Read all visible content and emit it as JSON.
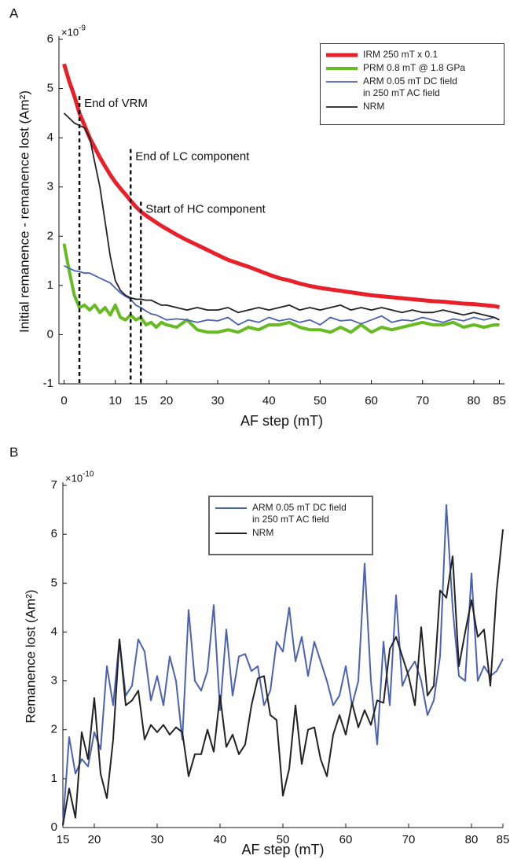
{
  "chart_data": [
    {
      "type": "line",
      "panel_label": "A",
      "x_label": "AF step (mT)",
      "y_label": "Initial remanence - remanence lost (Am²)",
      "y_multiplier": {
        "base": "×10",
        "exponent": "-9"
      },
      "xlim": [
        -1,
        86
      ],
      "xticks": [
        0,
        10,
        15,
        20,
        30,
        40,
        50,
        60,
        70,
        80,
        85
      ],
      "ylim": [
        -1,
        6
      ],
      "yticks": [
        -1,
        0,
        1,
        2,
        3,
        4,
        5,
        6
      ],
      "legend": "upper right",
      "x": [
        0,
        1,
        2,
        3,
        4,
        5,
        6,
        7,
        8,
        9,
        10,
        11,
        12,
        13,
        14,
        15,
        16,
        17,
        18,
        19,
        20,
        22,
        24,
        26,
        28,
        30,
        32,
        34,
        36,
        38,
        40,
        42,
        44,
        46,
        48,
        50,
        52,
        54,
        56,
        58,
        60,
        62,
        64,
        66,
        68,
        70,
        72,
        74,
        76,
        78,
        80,
        82,
        84,
        85
      ],
      "series": [
        {
          "name": "IRM 250 mT x 0.1",
          "color": "#e8202a",
          "line_width": 5,
          "values": [
            5.5,
            5.15,
            4.85,
            4.5,
            4.25,
            4.0,
            3.8,
            3.6,
            3.42,
            3.25,
            3.1,
            2.97,
            2.85,
            2.72,
            2.6,
            2.5,
            2.42,
            2.35,
            2.28,
            2.21,
            2.15,
            2.03,
            1.92,
            1.82,
            1.72,
            1.62,
            1.52,
            1.45,
            1.38,
            1.3,
            1.22,
            1.15,
            1.1,
            1.04,
            0.99,
            0.95,
            0.92,
            0.89,
            0.86,
            0.83,
            0.8,
            0.78,
            0.76,
            0.74,
            0.72,
            0.7,
            0.68,
            0.67,
            0.65,
            0.63,
            0.62,
            0.6,
            0.58,
            0.56
          ]
        },
        {
          "name": "PRM 0.8 mT @ 1.8 GPa",
          "color": "#66bb22",
          "line_width": 4,
          "values": [
            1.85,
            1.3,
            0.8,
            0.55,
            0.6,
            0.5,
            0.6,
            0.45,
            0.55,
            0.4,
            0.6,
            0.35,
            0.3,
            0.4,
            0.3,
            0.35,
            0.2,
            0.25,
            0.15,
            0.25,
            0.2,
            0.15,
            0.3,
            0.1,
            0.05,
            0.05,
            0.1,
            0.05,
            0.15,
            0.1,
            0.2,
            0.2,
            0.25,
            0.15,
            0.1,
            0.1,
            0.05,
            0.15,
            0.05,
            0.2,
            0.05,
            0.15,
            0.1,
            0.15,
            0.2,
            0.25,
            0.2,
            0.2,
            0.25,
            0.15,
            0.2,
            0.15,
            0.2,
            0.2
          ]
        },
        {
          "name": "ARM 0.05 mT DC field\nin 250 mT AC field",
          "color": "#4a62b0",
          "line_width": 1.8,
          "values": [
            1.4,
            1.35,
            1.3,
            1.28,
            1.25,
            1.25,
            1.2,
            1.15,
            1.1,
            1.05,
            0.95,
            0.85,
            0.78,
            0.72,
            0.6,
            0.55,
            0.48,
            0.42,
            0.4,
            0.35,
            0.3,
            0.32,
            0.3,
            0.25,
            0.3,
            0.28,
            0.35,
            0.2,
            0.3,
            0.25,
            0.35,
            0.28,
            0.32,
            0.25,
            0.3,
            0.2,
            0.35,
            0.28,
            0.3,
            0.22,
            0.3,
            0.38,
            0.25,
            0.3,
            0.28,
            0.35,
            0.3,
            0.25,
            0.32,
            0.28,
            0.35,
            0.3,
            0.35,
            0.3
          ]
        },
        {
          "name": "NRM",
          "color": "#222222",
          "line_width": 1.8,
          "values": [
            4.5,
            4.4,
            4.3,
            4.25,
            4.2,
            4.0,
            3.5,
            3.0,
            2.3,
            1.6,
            1.1,
            0.9,
            0.8,
            0.75,
            0.72,
            0.72,
            0.7,
            0.7,
            0.65,
            0.6,
            0.6,
            0.55,
            0.5,
            0.55,
            0.5,
            0.5,
            0.55,
            0.45,
            0.5,
            0.55,
            0.5,
            0.55,
            0.6,
            0.5,
            0.55,
            0.5,
            0.55,
            0.6,
            0.5,
            0.55,
            0.5,
            0.55,
            0.5,
            0.45,
            0.5,
            0.45,
            0.45,
            0.5,
            0.45,
            0.4,
            0.45,
            0.4,
            0.35,
            0.3
          ]
        }
      ],
      "annotations": [
        {
          "x": 3,
          "y": 4.85,
          "text": "End of VRM"
        },
        {
          "x": 13,
          "y": 3.77,
          "text": "End of LC component"
        },
        {
          "x": 15,
          "y": 2.7,
          "text": "Start of HC component"
        }
      ]
    },
    {
      "type": "line",
      "panel_label": "B",
      "x_label": "AF step (mT)",
      "y_label": "Remanence lost (Am²)",
      "y_multiplier": {
        "base": "×10",
        "exponent": "-10"
      },
      "xlim": [
        15,
        85
      ],
      "xticks": [
        15,
        20,
        30,
        40,
        50,
        60,
        70,
        80,
        85
      ],
      "ylim": [
        0,
        7
      ],
      "yticks": [
        0,
        1,
        2,
        3,
        4,
        5,
        6,
        7
      ],
      "legend": "upper center",
      "x": [
        15,
        16,
        17,
        18,
        19,
        20,
        21,
        22,
        23,
        24,
        25,
        26,
        27,
        28,
        29,
        30,
        31,
        32,
        33,
        34,
        35,
        36,
        37,
        38,
        39,
        40,
        41,
        42,
        43,
        44,
        45,
        46,
        47,
        48,
        49,
        50,
        51,
        52,
        53,
        54,
        55,
        56,
        57,
        58,
        59,
        60,
        61,
        62,
        63,
        64,
        65,
        66,
        67,
        68,
        69,
        70,
        71,
        72,
        73,
        74,
        75,
        76,
        77,
        78,
        79,
        80,
        81,
        82,
        83,
        84,
        85
      ],
      "series": [
        {
          "name": "ARM 0.05 mT DC field\nin 250 mT AC field",
          "color": "#4a62b0",
          "line_width": 2,
          "values": [
            0.05,
            1.85,
            1.1,
            1.4,
            1.25,
            1.95,
            1.6,
            3.3,
            2.5,
            3.85,
            2.7,
            2.9,
            3.85,
            3.6,
            2.6,
            3.1,
            2.5,
            3.5,
            3.0,
            1.8,
            4.45,
            3.0,
            2.8,
            3.2,
            4.55,
            2.4,
            4.05,
            2.7,
            3.5,
            3.55,
            3.2,
            3.3,
            2.5,
            2.8,
            3.8,
            3.6,
            4.5,
            3.4,
            3.9,
            3.1,
            3.8,
            3.4,
            3.0,
            2.5,
            2.7,
            3.3,
            2.5,
            3.0,
            5.4,
            3.0,
            1.7,
            3.8,
            2.5,
            4.75,
            2.9,
            3.2,
            3.4,
            3.0,
            2.3,
            2.6,
            3.5,
            6.6,
            4.5,
            3.1,
            3.0,
            5.2,
            3.0,
            3.3,
            3.1,
            3.2,
            3.45
          ]
        },
        {
          "name": "NRM",
          "color": "#222222",
          "line_width": 2,
          "values": [
            0.05,
            0.8,
            0.2,
            1.95,
            1.4,
            2.65,
            1.1,
            0.6,
            1.8,
            3.85,
            2.5,
            2.6,
            2.8,
            1.8,
            2.1,
            1.95,
            2.1,
            1.9,
            2.05,
            1.95,
            1.05,
            1.5,
            1.5,
            2.0,
            1.55,
            2.7,
            1.65,
            1.9,
            1.5,
            1.7,
            2.5,
            3.05,
            3.1,
            2.3,
            2.2,
            0.65,
            1.2,
            2.5,
            1.3,
            2.0,
            2.05,
            1.4,
            1.05,
            1.9,
            2.3,
            1.9,
            2.55,
            2.05,
            2.4,
            2.1,
            2.6,
            2.55,
            3.65,
            3.9,
            3.5,
            3.1,
            2.5,
            4.1,
            2.7,
            2.9,
            4.85,
            4.7,
            5.55,
            3.3,
            4.0,
            4.65,
            3.9,
            4.05,
            2.9,
            4.85,
            6.1
          ]
        }
      ]
    }
  ]
}
